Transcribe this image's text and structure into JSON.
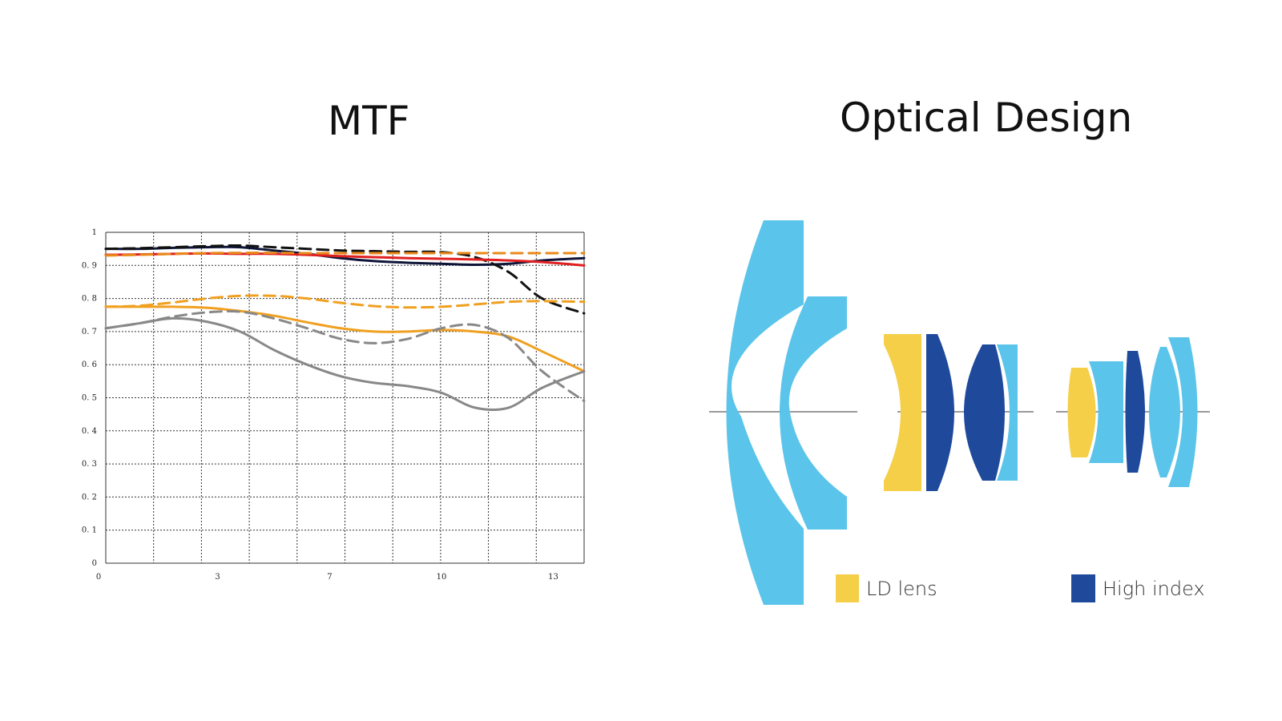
{
  "mtf_panel": {
    "title": "MTF"
  },
  "optical_panel": {
    "title": "Optical Design",
    "legend": [
      {
        "label": "LD lens",
        "color": "#f5cf47"
      },
      {
        "label": "High index",
        "color": "#1f4a9c"
      }
    ],
    "colors": {
      "standard": "#5bc4ea",
      "ld": "#f5cf47",
      "high_index": "#1f4a9c"
    }
  },
  "chart_data": {
    "type": "line",
    "title": "MTF",
    "xlabel": "",
    "ylabel": "",
    "xlim": [
      0,
      14.25
    ],
    "ylim": [
      0,
      1
    ],
    "grid": true,
    "x_ticks": [
      "0",
      "3",
      "7",
      "10",
      "13"
    ],
    "x_tick_values": [
      0,
      3.33,
      6.67,
      10,
      13.33
    ],
    "y_ticks": [
      "0",
      "0.1",
      "0.2",
      "0.3",
      "0.4",
      "0.5",
      "0.6",
      "0.7",
      "0.8",
      "0.9",
      "1"
    ],
    "series": [
      {
        "color": "#0e1538",
        "dash": false,
        "x": [
          0,
          1,
          2,
          3,
          4,
          5,
          6,
          7,
          8,
          9,
          10,
          11,
          12,
          13,
          14.25
        ],
        "y": [
          0.95,
          0.95,
          0.953,
          0.955,
          0.955,
          0.945,
          0.935,
          0.922,
          0.913,
          0.908,
          0.905,
          0.902,
          0.905,
          0.915,
          0.922
        ]
      },
      {
        "color": "#111111",
        "dash": true,
        "x": [
          0,
          1,
          2,
          3,
          4,
          5,
          6,
          7,
          8,
          9,
          10,
          11,
          12,
          13,
          14.25
        ],
        "y": [
          0.95,
          0.952,
          0.955,
          0.958,
          0.96,
          0.955,
          0.95,
          0.945,
          0.943,
          0.941,
          0.94,
          0.925,
          0.88,
          0.8,
          0.755
        ]
      },
      {
        "color": "#e02020",
        "dash": false,
        "x": [
          0,
          1,
          2,
          3,
          4,
          5,
          6,
          7,
          8,
          9,
          10,
          11,
          12,
          13,
          14.25
        ],
        "y": [
          0.932,
          0.933,
          0.935,
          0.936,
          0.935,
          0.935,
          0.932,
          0.928,
          0.925,
          0.922,
          0.92,
          0.918,
          0.915,
          0.91,
          0.9
        ]
      },
      {
        "color": "#e8891a",
        "dash": true,
        "x": [
          0,
          1,
          2,
          3,
          4,
          5,
          6,
          7,
          8,
          9,
          10,
          11,
          12,
          13,
          14.25
        ],
        "y": [
          0.93,
          0.932,
          0.935,
          0.937,
          0.938,
          0.938,
          0.937,
          0.937,
          0.937,
          0.937,
          0.937,
          0.937,
          0.937,
          0.937,
          0.937
        ]
      },
      {
        "color": "#f0a020",
        "dash": true,
        "x": [
          0,
          1,
          2,
          3,
          4,
          5,
          6,
          7,
          8,
          9,
          10,
          11,
          12,
          13,
          14.25
        ],
        "y": [
          0.775,
          0.778,
          0.788,
          0.8,
          0.808,
          0.808,
          0.8,
          0.787,
          0.777,
          0.773,
          0.775,
          0.782,
          0.79,
          0.792,
          0.79
        ]
      },
      {
        "color": "#f0a020",
        "dash": false,
        "x": [
          0,
          1,
          2,
          3,
          4,
          5,
          6,
          7,
          8,
          9,
          10,
          11,
          12,
          13,
          14.25
        ],
        "y": [
          0.775,
          0.775,
          0.775,
          0.772,
          0.762,
          0.748,
          0.728,
          0.71,
          0.7,
          0.7,
          0.705,
          0.7,
          0.685,
          0.64,
          0.58
        ]
      },
      {
        "color": "#888888",
        "dash": true,
        "x": [
          0,
          1,
          2,
          3,
          4,
          5,
          6,
          7,
          8,
          9,
          10,
          11,
          12,
          13,
          14.25
        ],
        "y": [
          0.71,
          0.725,
          0.745,
          0.758,
          0.76,
          0.74,
          0.71,
          0.678,
          0.665,
          0.678,
          0.71,
          0.72,
          0.68,
          0.58,
          0.49
        ]
      },
      {
        "color": "#888888",
        "dash": false,
        "x": [
          0,
          1,
          2,
          3,
          4,
          5,
          6,
          7,
          8,
          9,
          10,
          11,
          12,
          13,
          14.25
        ],
        "y": [
          0.71,
          0.725,
          0.74,
          0.73,
          0.7,
          0.645,
          0.6,
          0.565,
          0.545,
          0.535,
          0.515,
          0.47,
          0.47,
          0.53,
          0.58
        ]
      }
    ]
  }
}
